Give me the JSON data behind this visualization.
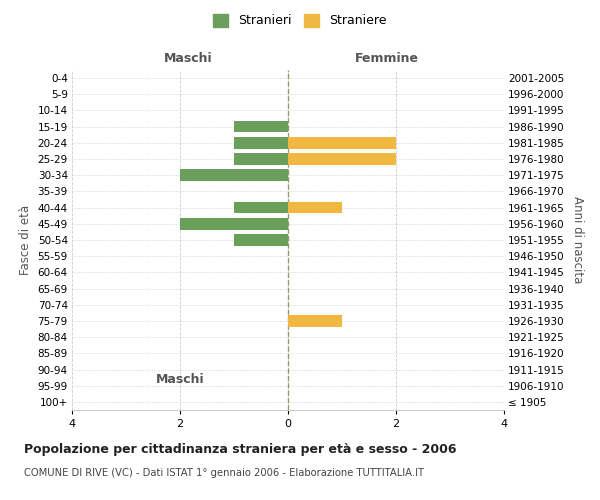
{
  "age_groups": [
    "100+",
    "95-99",
    "90-94",
    "85-89",
    "80-84",
    "75-79",
    "70-74",
    "65-69",
    "60-64",
    "55-59",
    "50-54",
    "45-49",
    "40-44",
    "35-39",
    "30-34",
    "25-29",
    "20-24",
    "15-19",
    "10-14",
    "5-9",
    "0-4"
  ],
  "birth_years": [
    "≤ 1905",
    "1906-1910",
    "1911-1915",
    "1916-1920",
    "1921-1925",
    "1926-1930",
    "1931-1935",
    "1936-1940",
    "1941-1945",
    "1946-1950",
    "1951-1955",
    "1956-1960",
    "1961-1965",
    "1966-1970",
    "1971-1975",
    "1976-1980",
    "1981-1985",
    "1986-1990",
    "1991-1995",
    "1996-2000",
    "2001-2005"
  ],
  "maschi_stranieri": [
    0,
    0,
    0,
    0,
    0,
    0,
    0,
    0,
    0,
    0,
    1,
    2,
    1,
    0,
    2,
    1,
    1,
    1,
    0,
    0,
    0
  ],
  "femmine_straniere": [
    0,
    0,
    0,
    0,
    0,
    1,
    0,
    0,
    0,
    0,
    0,
    0,
    1,
    0,
    0,
    2,
    2,
    0,
    0,
    0,
    0
  ],
  "color_maschi": "#6a9e5b",
  "color_femmine": "#f0b840",
  "title": "Popolazione per cittadinanza straniera per età e sesso - 2006",
  "subtitle": "COMUNE DI RIVE (VC) - Dati ISTAT 1° gennaio 2006 - Elaborazione TUTTITALIA.IT",
  "ylabel_left": "Fasce di età",
  "ylabel_right": "Anni di nascita",
  "xlabel_left": "Maschi",
  "xlabel_right": "Femmine",
  "legend_maschi": "Stranieri",
  "legend_femmine": "Straniere",
  "xlim": 4,
  "background_color": "#ffffff",
  "grid_color": "#cccccc",
  "center_line_color": "#999966"
}
